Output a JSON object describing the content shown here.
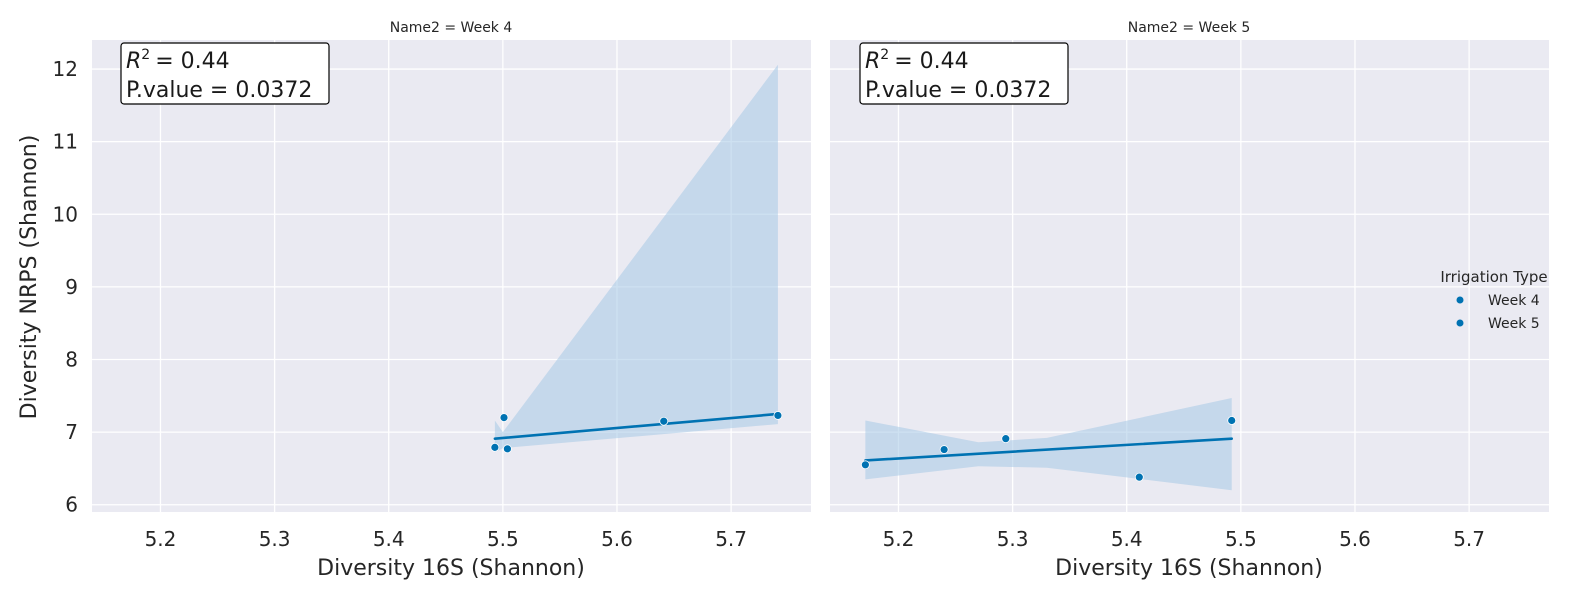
{
  "chart_data": [
    {
      "type": "scatter",
      "facet_title": "Name2 = Week 4",
      "xlabel": "Diversity 16S (Shannon)",
      "ylabel": "Diversity NRPS (Shannon)",
      "xlim": [
        5.14,
        5.77
      ],
      "ylim": [
        5.9,
        12.4
      ],
      "x_ticks": [
        5.2,
        5.3,
        5.4,
        5.5,
        5.6,
        5.7
      ],
      "x_tick_labels": [
        "5.2",
        "5.3",
        "5.4",
        "5.5",
        "5.6",
        "5.7"
      ],
      "y_ticks": [
        6,
        7,
        8,
        9,
        10,
        11,
        12
      ],
      "y_tick_labels": [
        "6",
        "7",
        "8",
        "9",
        "10",
        "11",
        "12"
      ],
      "grid": true,
      "stats": {
        "r2_label": "R",
        "r2_sup": "2",
        "r2_value": "= 0.44",
        "pvalue": "P.value = 0.0372"
      },
      "points": [
        {
          "x": 5.493,
          "y": 6.79
        },
        {
          "x": 5.501,
          "y": 7.2
        },
        {
          "x": 5.504,
          "y": 6.77
        },
        {
          "x": 5.641,
          "y": 7.15
        },
        {
          "x": 5.741,
          "y": 7.23
        }
      ],
      "regression": {
        "x": [
          5.493,
          5.741
        ],
        "y": [
          6.91,
          7.25
        ],
        "ci_x": [
          5.493,
          5.5,
          5.741
        ],
        "ci_upper": [
          7.16,
          7.0,
          12.06
        ],
        "ci_lower": [
          6.72,
          6.78,
          7.11
        ]
      }
    },
    {
      "type": "scatter",
      "facet_title": "Name2 = Week 5",
      "xlabel": "Diversity 16S (Shannon)",
      "ylabel": "",
      "xlim": [
        5.14,
        5.77
      ],
      "ylim": [
        5.9,
        12.4
      ],
      "x_ticks": [
        5.2,
        5.3,
        5.4,
        5.5,
        5.6,
        5.7
      ],
      "x_tick_labels": [
        "5.2",
        "5.3",
        "5.4",
        "5.5",
        "5.6",
        "5.7"
      ],
      "y_ticks": [
        6,
        7,
        8,
        9,
        10,
        11,
        12
      ],
      "grid": true,
      "stats": {
        "r2_label": "R",
        "r2_sup": "2",
        "r2_value": "= 0.44",
        "pvalue": "P.value = 0.0372"
      },
      "points": [
        {
          "x": 5.171,
          "y": 6.55
        },
        {
          "x": 5.24,
          "y": 6.76
        },
        {
          "x": 5.294,
          "y": 6.91
        },
        {
          "x": 5.411,
          "y": 6.38
        },
        {
          "x": 5.492,
          "y": 7.16
        }
      ],
      "regression": {
        "x": [
          5.171,
          5.492
        ],
        "y": [
          6.61,
          6.91
        ],
        "ci_x": [
          5.171,
          5.27,
          5.33,
          5.492
        ],
        "ci_upper": [
          7.16,
          6.86,
          6.92,
          7.47
        ],
        "ci_lower": [
          6.35,
          6.53,
          6.51,
          6.2
        ]
      }
    }
  ],
  "legend": {
    "title": "Irrigation Type",
    "entries": [
      "Week 4",
      "Week 5"
    ],
    "placement": "center-right"
  },
  "colors": {
    "point": "#0072b2",
    "line": "#0072b2",
    "ci_fill": "#a6c8e5",
    "panel_bg": "#eaeaf2",
    "grid": "#ffffff",
    "page_bg": "#ffffff"
  }
}
